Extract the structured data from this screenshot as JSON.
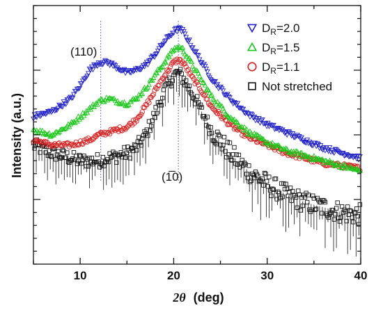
{
  "chart_data": {
    "type": "scatter",
    "title": "",
    "xlabel_symbol": "2θ",
    "xlabel_unit": "(deg)",
    "ylabel": "Intensity (a.u.)",
    "xlim": [
      5,
      40
    ],
    "ylim": [
      0,
      10
    ],
    "x_ticks": [
      10,
      20,
      30,
      40
    ],
    "x_tick_labels": [
      "10",
      "20",
      "30",
      "40"
    ],
    "y_tick_labels_shown": false,
    "grid": false,
    "legend_position": "top-right",
    "annotations": [
      {
        "text": "(110)",
        "x": 12.2
      },
      {
        "text": "(1̅0)",
        "x": 20.6
      }
    ],
    "reference_lines_x": [
      12.2,
      20.5
    ],
    "series": [
      {
        "name": "D_R=2.0",
        "name_main": "D",
        "name_sub": "R",
        "name_tail": "=2.0",
        "marker": "triangle-down",
        "color": "#2020c8",
        "x": [
          5,
          7,
          9,
          10,
          11,
          12,
          13,
          14,
          15,
          16,
          17,
          18,
          19,
          20,
          20.5,
          21,
          22,
          23,
          24,
          26,
          28,
          30,
          32,
          34,
          36,
          38,
          40
        ],
        "y": [
          5.7,
          5.9,
          6.4,
          6.9,
          7.5,
          7.8,
          7.8,
          7.6,
          7.4,
          7.5,
          7.7,
          8.1,
          8.6,
          9.0,
          9.1,
          9.0,
          8.4,
          7.8,
          7.2,
          6.4,
          5.8,
          5.4,
          5.1,
          4.8,
          4.5,
          4.3,
          4.1
        ]
      },
      {
        "name": "D_R=1.5",
        "name_main": "D",
        "name_sub": "R",
        "name_tail": "=1.5",
        "marker": "triangle-up",
        "color": "#1ac81a",
        "x": [
          5,
          7,
          9,
          10,
          11,
          12,
          13,
          14,
          15,
          16,
          17,
          18,
          19,
          20,
          20.5,
          21,
          22,
          23,
          24,
          26,
          28,
          30,
          32,
          34,
          36,
          38,
          40
        ],
        "y": [
          5.2,
          5.0,
          5.4,
          5.7,
          6.0,
          6.3,
          6.4,
          6.3,
          6.2,
          6.4,
          6.8,
          7.3,
          7.8,
          8.3,
          8.4,
          8.3,
          7.7,
          7.1,
          6.5,
          5.7,
          5.1,
          4.7,
          4.4,
          4.2,
          4.0,
          3.8,
          3.6
        ]
      },
      {
        "name": "D_R=1.1",
        "name_main": "D",
        "name_sub": "R",
        "name_tail": "=1.1",
        "marker": "circle",
        "color": "#d82020",
        "x": [
          5,
          7,
          9,
          10,
          11,
          12,
          13,
          14,
          15,
          16,
          17,
          18,
          19,
          20,
          20.5,
          21,
          22,
          23,
          24,
          26,
          28,
          30,
          32,
          34,
          36,
          38,
          40
        ],
        "y": [
          4.8,
          4.6,
          4.6,
          4.7,
          4.8,
          5.0,
          5.1,
          5.2,
          5.3,
          5.6,
          6.1,
          6.7,
          7.3,
          7.8,
          7.9,
          7.8,
          7.2,
          6.7,
          6.1,
          5.4,
          4.9,
          4.6,
          4.3,
          4.1,
          3.9,
          3.8,
          3.7
        ]
      },
      {
        "name": "Not stretched",
        "marker": "square",
        "color": "#111111",
        "x": [
          5,
          7,
          9,
          10,
          11,
          12,
          13,
          14,
          15,
          16,
          17,
          18,
          19,
          20,
          20.5,
          21,
          22,
          23,
          24,
          26,
          28,
          30,
          32,
          34,
          36,
          38,
          40
        ],
        "y": [
          4.6,
          4.3,
          4.1,
          4.0,
          4.0,
          4.0,
          4.1,
          4.2,
          4.3,
          4.5,
          5.0,
          5.8,
          6.7,
          7.3,
          7.4,
          7.2,
          6.6,
          5.9,
          5.2,
          4.3,
          3.6,
          3.1,
          2.7,
          2.4,
          2.2,
          2.0,
          1.9
        ]
      }
    ]
  }
}
